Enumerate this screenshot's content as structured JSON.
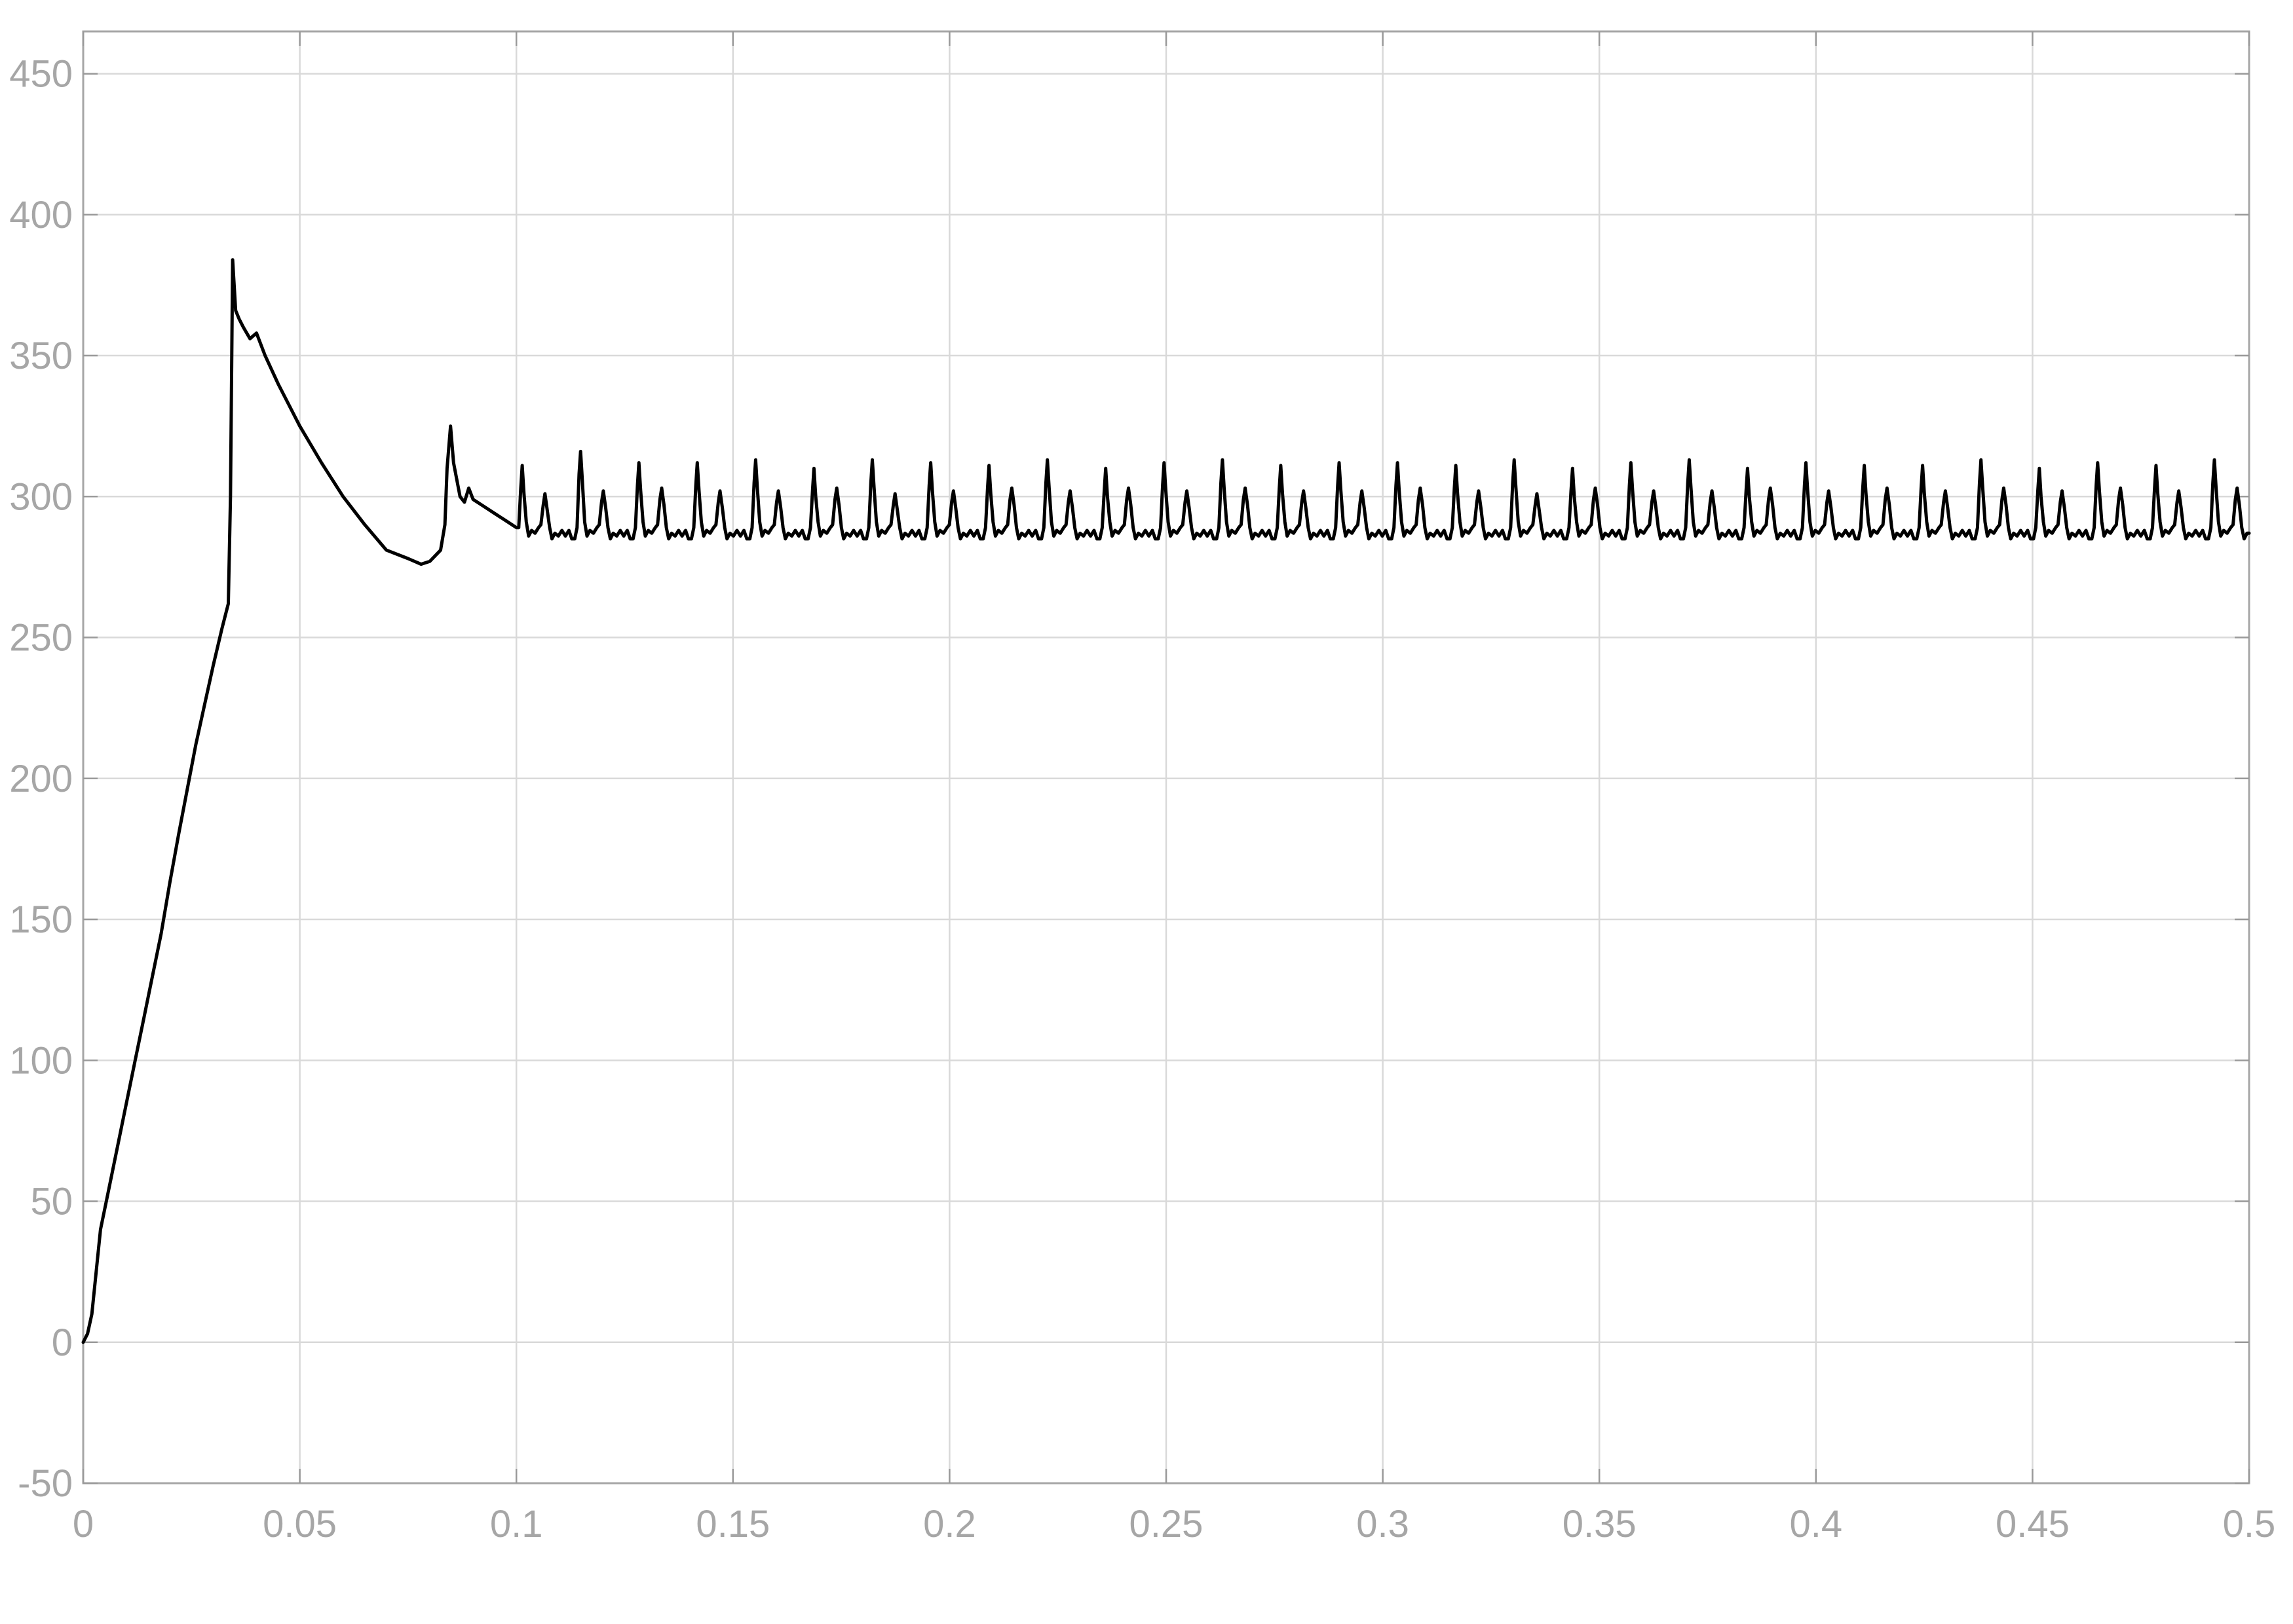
{
  "chart_data": {
    "type": "line",
    "title": "",
    "xlabel": "",
    "ylabel": "",
    "xlim": [
      0,
      0.5
    ],
    "ylim": [
      -50,
      465
    ],
    "grid": true,
    "legend": "none",
    "x_ticks": [
      "0",
      "0.05",
      "0.1",
      "0.15",
      "0.2",
      "0.25",
      "0.3",
      "0.35",
      "0.4",
      "0.45",
      "0.5"
    ],
    "y_ticks": [
      "-50",
      "0",
      "50",
      "100",
      "150",
      "200",
      "250",
      "300",
      "350",
      "400",
      "450"
    ],
    "series": [
      {
        "color": "#000000",
        "startup_points": [
          [
            0,
            0
          ],
          [
            0.001,
            3
          ],
          [
            0.002,
            10
          ],
          [
            0.003,
            25
          ],
          [
            0.004,
            40
          ],
          [
            0.006,
            55
          ],
          [
            0.008,
            70
          ],
          [
            0.01,
            85
          ],
          [
            0.012,
            100
          ],
          [
            0.014,
            115
          ],
          [
            0.016,
            130
          ],
          [
            0.018,
            145
          ],
          [
            0.02,
            163
          ],
          [
            0.022,
            180
          ],
          [
            0.024,
            196
          ],
          [
            0.026,
            212
          ],
          [
            0.028,
            226
          ],
          [
            0.03,
            240
          ],
          [
            0.032,
            253
          ],
          [
            0.033,
            259
          ],
          [
            0.0335,
            262
          ],
          [
            0.034,
            300
          ],
          [
            0.0345,
            384
          ],
          [
            0.0352,
            366
          ],
          [
            0.036,
            363
          ],
          [
            0.037,
            360
          ],
          [
            0.0385,
            356
          ],
          [
            0.04,
            358
          ],
          [
            0.042,
            350
          ],
          [
            0.045,
            340
          ],
          [
            0.05,
            325
          ],
          [
            0.055,
            312
          ],
          [
            0.06,
            300
          ],
          [
            0.065,
            290
          ],
          [
            0.07,
            281
          ],
          [
            0.075,
            278
          ],
          [
            0.078,
            276
          ],
          [
            0.08,
            277
          ],
          [
            0.0825,
            281
          ],
          [
            0.0835,
            290
          ],
          [
            0.084,
            310
          ],
          [
            0.0848,
            325
          ],
          [
            0.0855,
            312
          ],
          [
            0.087,
            300
          ],
          [
            0.088,
            298
          ],
          [
            0.089,
            303
          ],
          [
            0.09,
            299
          ],
          [
            0.092,
            297
          ],
          [
            0.095,
            294
          ],
          [
            0.098,
            291
          ],
          [
            0.1,
            289
          ]
        ],
        "ripple": {
          "x_start": 0.1,
          "x_end": 0.5,
          "major_period": 0.01347,
          "baseline": 287,
          "major_peak_values": [
            311,
            316,
            312,
            312,
            313,
            310,
            313,
            312,
            311,
            313,
            310,
            312,
            313,
            311,
            312,
            312,
            311,
            313,
            310,
            312,
            313,
            310,
            312,
            311,
            311,
            313,
            310,
            312,
            311,
            313
          ],
          "minor_peak_values": [
            301,
            302,
            303,
            302,
            302,
            303,
            301,
            302,
            303,
            302,
            303,
            302,
            303,
            302,
            302,
            303,
            302,
            301,
            303,
            302,
            302,
            303,
            302,
            303,
            302,
            303,
            302,
            303,
            302,
            303
          ]
        },
        "end_value": 287
      }
    ]
  }
}
